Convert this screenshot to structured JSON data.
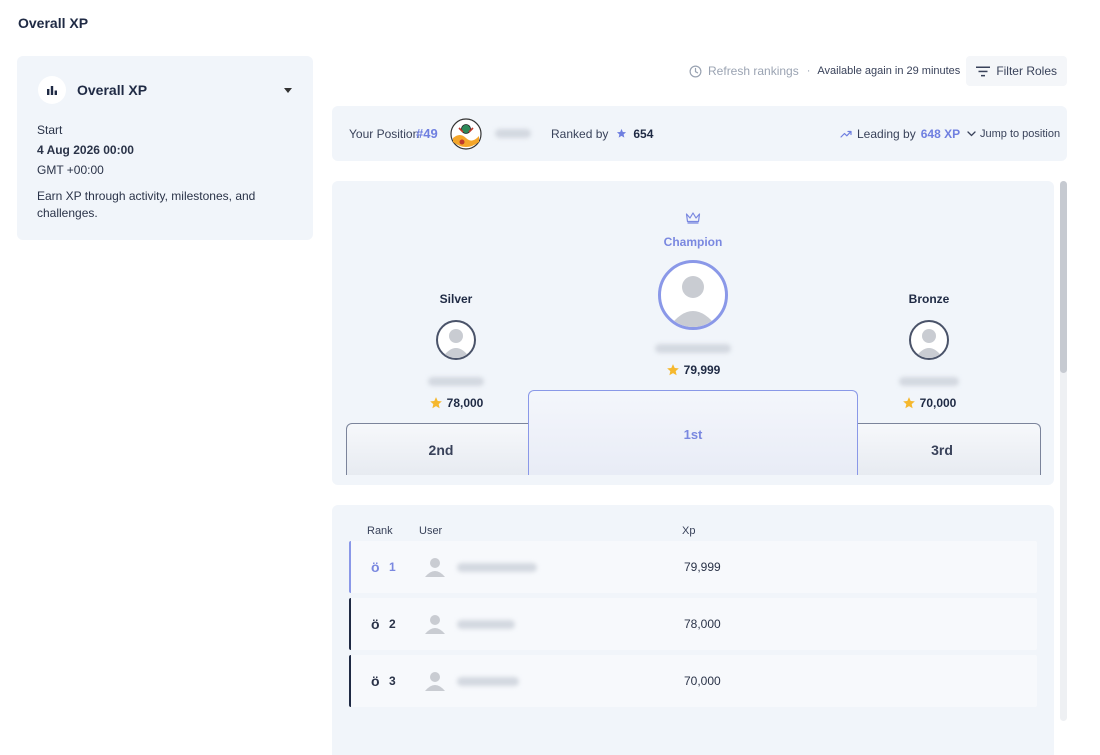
{
  "page": {
    "title": "Overall XP"
  },
  "leaderboard_panel": {
    "title": "Overall XP",
    "start_label": "Start",
    "start_date": "4 Aug 2026 00:00",
    "timezone": "GMT +00:00",
    "description": "Earn XP through activity, milestones, and challenges."
  },
  "toolbar": {
    "refresh_label": "Refresh rankings",
    "available_text": "Available again in 29 minutes",
    "filter_label": "Filter Roles"
  },
  "position_bar": {
    "your_position_label": "Your Position",
    "rank": "#49",
    "ranked_by_label": "Ranked by",
    "ranked_by_value": "654",
    "leading_by_label": "Leading by",
    "leading_by_value": "648 XP",
    "jump_label": "Jump to position"
  },
  "podium": {
    "champion": {
      "title": "Champion",
      "xp": "79,999",
      "block": "1st"
    },
    "silver": {
      "title": "Silver",
      "xp": "78,000",
      "block": "2nd"
    },
    "bronze": {
      "title": "Bronze",
      "xp": "70,000",
      "block": "3rd"
    }
  },
  "table": {
    "headers": {
      "rank": "Rank",
      "user": "User",
      "xp": "Xp"
    },
    "medal_glyph": "ö",
    "rows": [
      {
        "rank": "1",
        "xp": "79,999"
      },
      {
        "rank": "2",
        "xp": "78,000"
      },
      {
        "rank": "3",
        "xp": "70,000"
      }
    ]
  },
  "colors": {
    "accent": "#6f7fe0",
    "star": "#f5b82e",
    "card_bg": "#f1f5fa",
    "text": "#1f2a44"
  }
}
